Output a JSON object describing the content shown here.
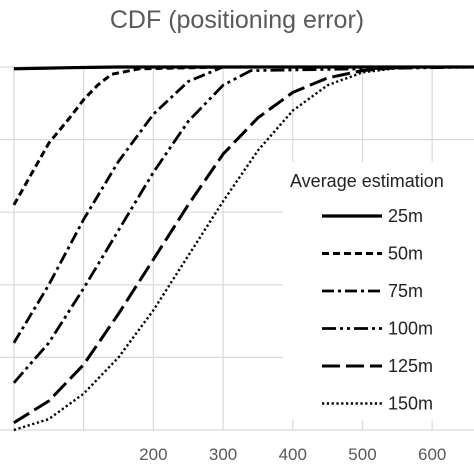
{
  "chart_data": {
    "type": "line",
    "title": "CDF (positioning error)",
    "xlabel": "",
    "ylabel": "",
    "xlim": [
      -20,
      660
    ],
    "ylim": [
      0,
      1.0
    ],
    "x_ticks": [
      200,
      300,
      400,
      500,
      600
    ],
    "y_grid": [
      0,
      0.2,
      0.4,
      0.6,
      0.8,
      1.0
    ],
    "grid": true,
    "legend": {
      "title": "Average estimation",
      "position": "right"
    },
    "series": [
      {
        "name": "25m",
        "dash": "solid",
        "x": [
          0,
          20,
          50,
          80,
          110,
          150,
          200,
          660
        ],
        "y": [
          0.995,
          0.996,
          0.997,
          0.998,
          0.999,
          1.0,
          1.0,
          1.0
        ]
      },
      {
        "name": "50m",
        "dash": "dashed",
        "x": [
          0,
          50,
          80,
          100,
          120,
          140,
          180,
          300,
          660
        ],
        "y": [
          0.62,
          0.79,
          0.86,
          0.91,
          0.95,
          0.98,
          0.995,
          1.0,
          1.0
        ]
      },
      {
        "name": "75m",
        "dash": "dashdot",
        "x": [
          0,
          50,
          100,
          150,
          200,
          250,
          300,
          660
        ],
        "y": [
          0.24,
          0.4,
          0.58,
          0.74,
          0.87,
          0.96,
          1.0,
          1.0
        ]
      },
      {
        "name": "100m",
        "dash": "dashdotdot",
        "x": [
          0,
          50,
          100,
          150,
          200,
          250,
          300,
          340,
          660
        ],
        "y": [
          0.13,
          0.24,
          0.39,
          0.55,
          0.71,
          0.85,
          0.95,
          0.99,
          1.0
        ]
      },
      {
        "name": "125m",
        "dash": "longdash",
        "x": [
          0,
          50,
          100,
          150,
          200,
          250,
          300,
          350,
          400,
          450,
          500,
          560,
          660
        ],
        "y": [
          0.02,
          0.08,
          0.18,
          0.32,
          0.47,
          0.62,
          0.76,
          0.86,
          0.93,
          0.97,
          0.99,
          1.0,
          1.0
        ]
      },
      {
        "name": "150m",
        "dash": "dotted",
        "x": [
          0,
          50,
          100,
          150,
          200,
          250,
          300,
          350,
          400,
          450,
          500,
          550,
          600,
          660
        ],
        "y": [
          0.0,
          0.03,
          0.1,
          0.2,
          0.33,
          0.48,
          0.63,
          0.77,
          0.88,
          0.95,
          0.985,
          0.997,
          1.0,
          1.0
        ]
      }
    ]
  }
}
